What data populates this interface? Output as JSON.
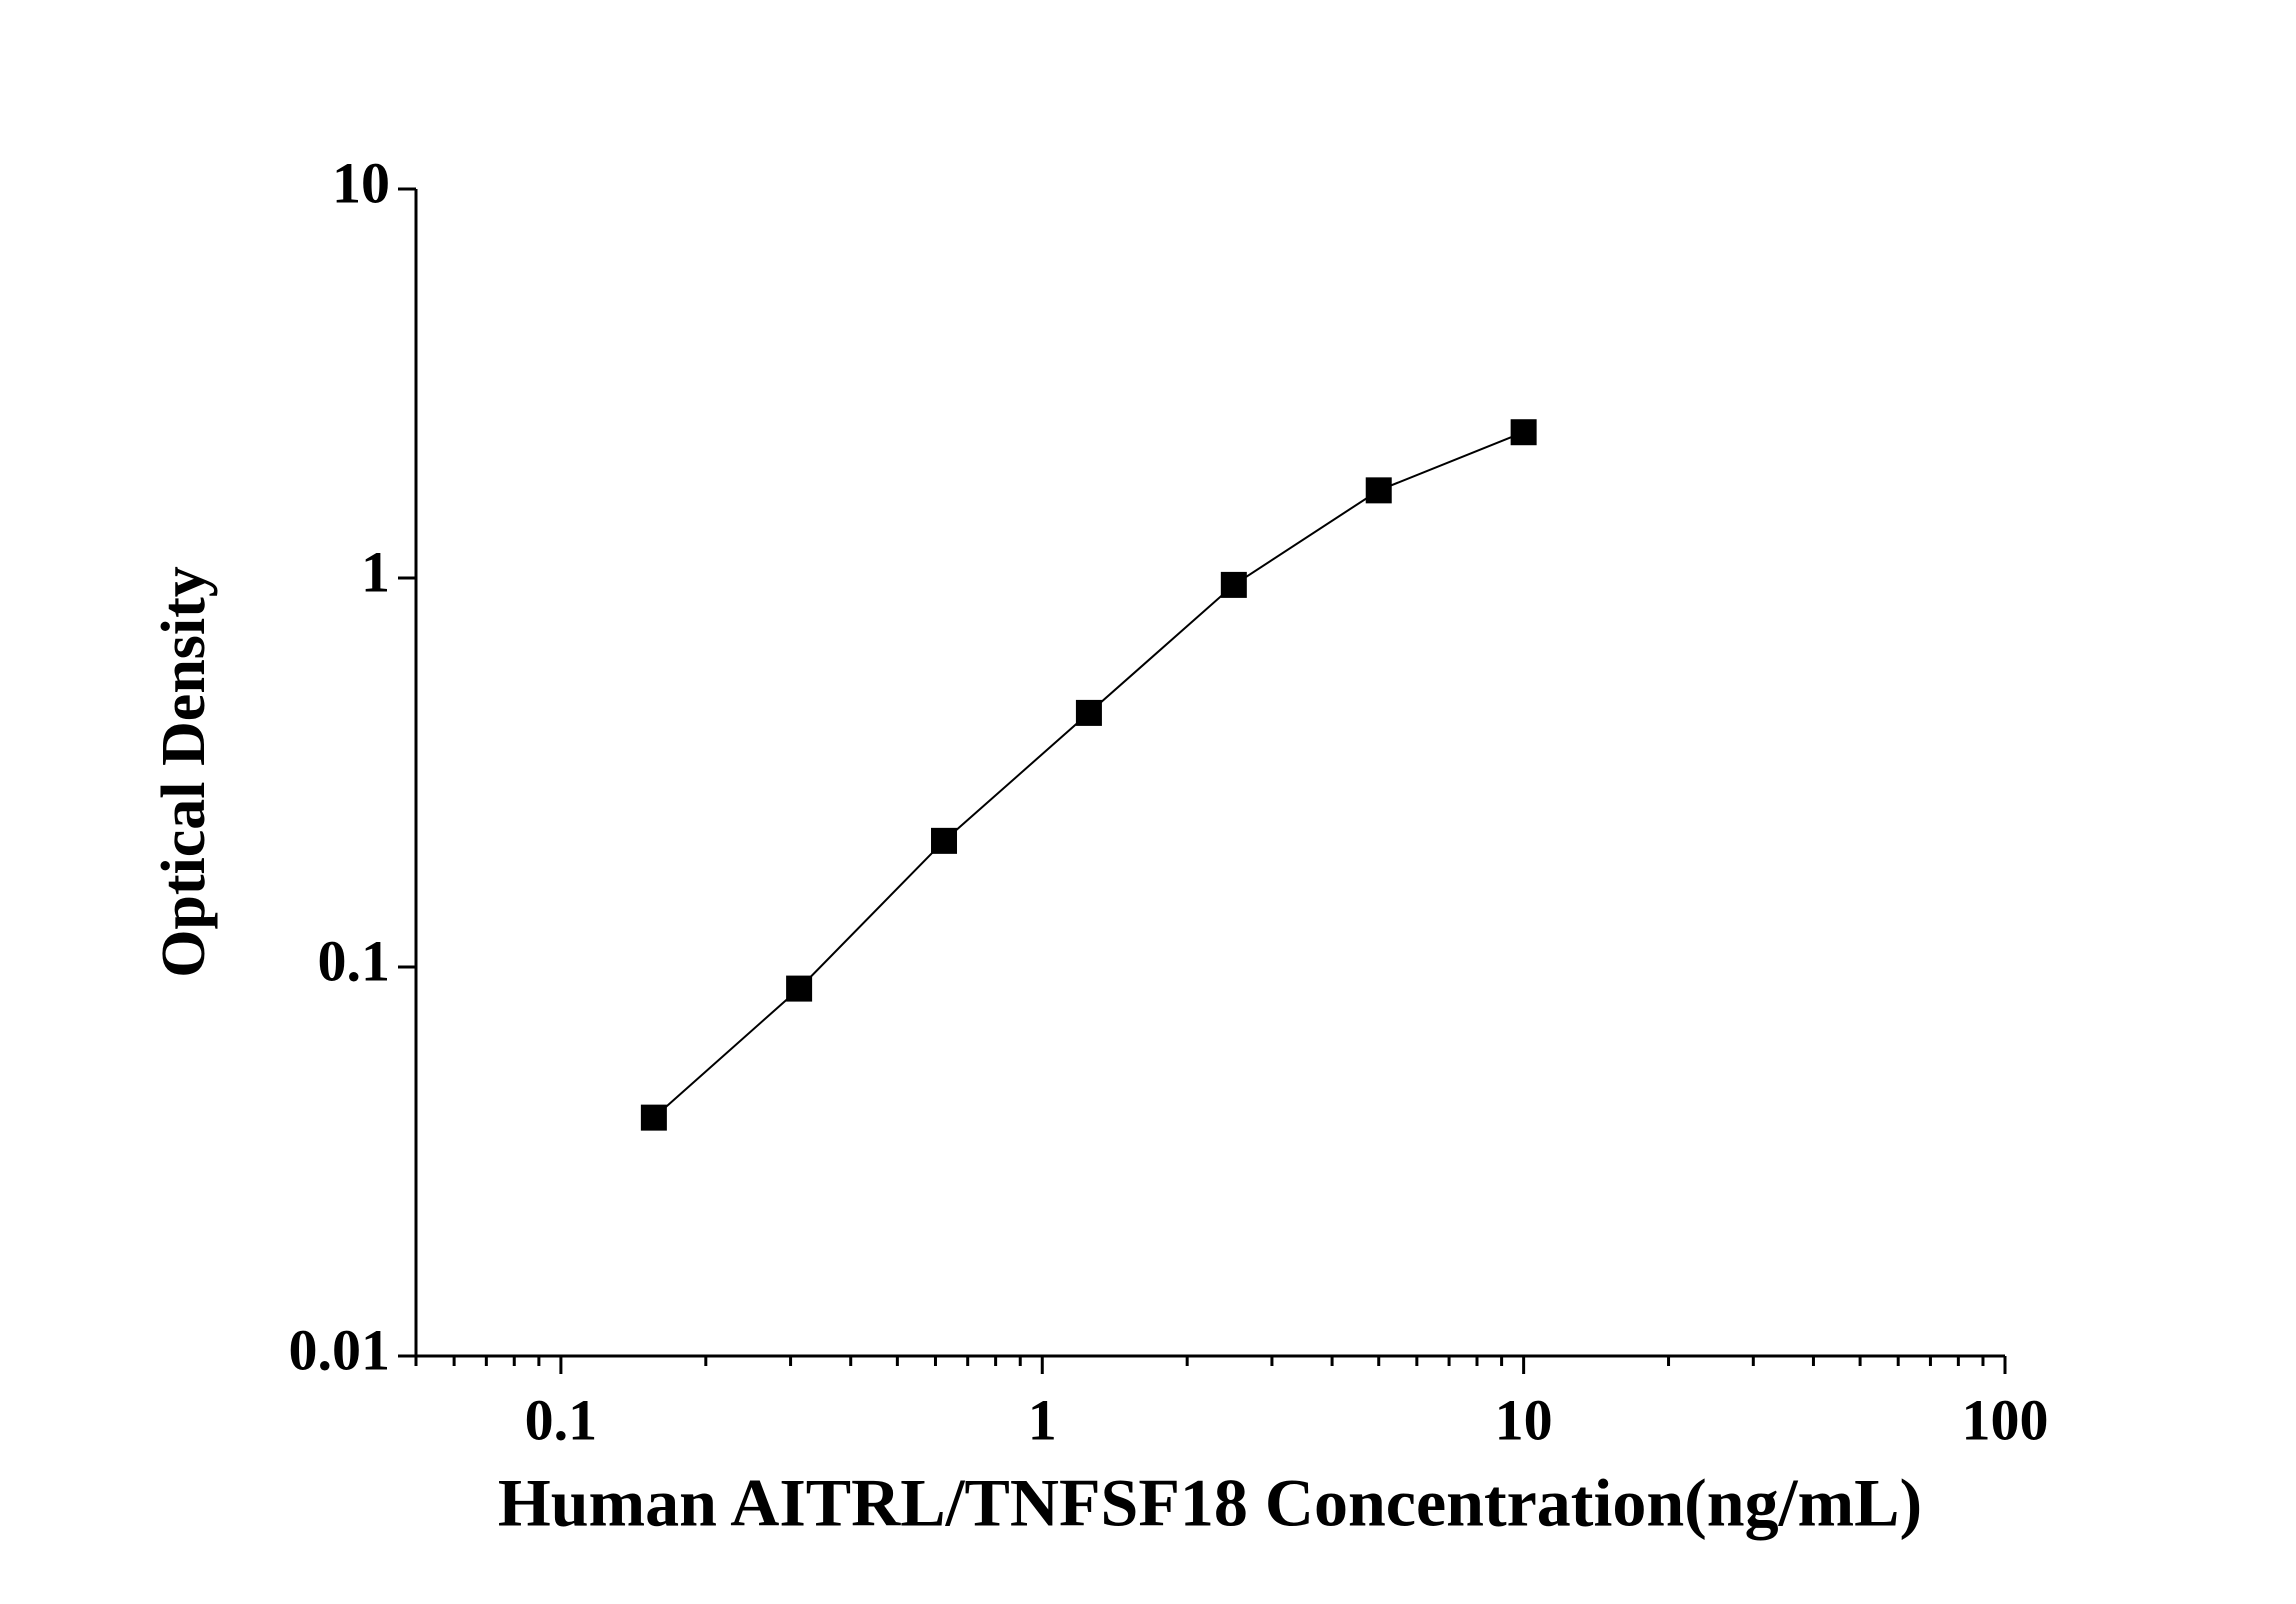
{
  "chart_data": {
    "type": "line",
    "x_label": "Human AITRL/TNFSF18 Concentration(ng/mL)",
    "y_label": "Optical Density",
    "x": [
      0.156,
      0.3125,
      0.625,
      1.25,
      2.5,
      5,
      10
    ],
    "series": [
      {
        "color": "#000000",
        "values": [
          0.041,
          0.088,
          0.211,
          0.45,
          0.96,
          1.68,
          2.37
        ]
      }
    ],
    "xlim": [
      0.05,
      100
    ],
    "ylim": [
      0.01,
      10
    ],
    "xticks": [
      0.1,
      1,
      10,
      100
    ],
    "yticks": [
      0.01,
      0.1,
      1,
      10
    ],
    "xscale": "log",
    "yscale": "log",
    "x_minor_ticks": true,
    "grid": false,
    "marker": "square"
  }
}
